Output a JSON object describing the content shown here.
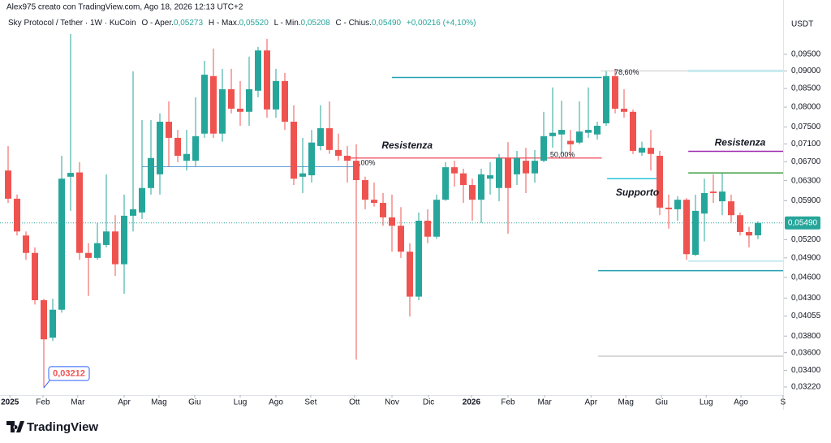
{
  "chart_data": {
    "type": "candlestick",
    "watermark": "Alex975 creato con TradingView.com, Ago 18, 2026 12:13 UTC+2",
    "legend": {
      "symbol": "Sky Protocol / Tether · 1W · KuCoin",
      "items": [
        {
          "label": "O - Aper.",
          "value": "0,05273"
        },
        {
          "label": "H - Max.",
          "value": "0,05520"
        },
        {
          "label": "L - Min.",
          "value": "0,05208"
        },
        {
          "label": "C - Chius.",
          "value": "0,05490"
        }
      ],
      "change": "+0,00216 (+4,10%)"
    },
    "currency": "USDT",
    "up_color": "#26a69a",
    "down_color": "#ef5350",
    "log_scale": true,
    "grid": false,
    "categories": [
      null,
      null,
      null,
      null,
      null,
      null,
      null,
      null,
      null,
      null,
      null,
      null,
      null,
      null,
      null,
      null,
      null,
      null,
      null,
      null,
      null,
      null,
      null,
      null,
      null,
      null,
      null,
      null,
      null,
      null,
      null,
      null,
      null,
      null,
      null,
      null,
      null,
      null,
      null,
      null,
      null,
      null,
      null,
      null,
      null,
      null,
      null,
      null,
      null,
      null,
      null,
      null,
      null,
      null,
      null,
      null,
      null,
      null,
      null,
      null,
      null,
      null,
      null,
      null,
      null,
      null,
      null,
      null,
      null,
      null,
      null,
      null,
      null,
      null,
      null,
      null,
      null,
      null,
      null,
      null,
      null,
      null,
      null,
      null,
      null
    ],
    "candles": [
      {
        "open": 0.0651,
        "high": 0.0705,
        "low": 0.0586,
        "close": 0.0594
      },
      {
        "open": 0.0594,
        "high": 0.0602,
        "low": 0.0527,
        "close": 0.0534
      },
      {
        "open": 0.0527,
        "high": 0.0534,
        "low": 0.0487,
        "close": 0.0498
      },
      {
        "open": 0.0498,
        "high": 0.0507,
        "low": 0.0421,
        "close": 0.0427
      },
      {
        "open": 0.0427,
        "high": 0.0429,
        "low": 0.03212,
        "close": 0.0376
      },
      {
        "open": 0.0378,
        "high": 0.0429,
        "low": 0.0374,
        "close": 0.0414
      },
      {
        "open": 0.0414,
        "high": 0.0683,
        "low": 0.041,
        "close": 0.0634
      },
      {
        "open": 0.0638,
        "high": 0.1015,
        "low": 0.0571,
        "close": 0.0646
      },
      {
        "open": 0.0647,
        "high": 0.0669,
        "low": 0.0487,
        "close": 0.0498
      },
      {
        "open": 0.0498,
        "high": 0.0514,
        "low": 0.0433,
        "close": 0.049
      },
      {
        "open": 0.049,
        "high": 0.0549,
        "low": 0.0487,
        "close": 0.0514
      },
      {
        "open": 0.0511,
        "high": 0.0643,
        "low": 0.0507,
        "close": 0.0534
      },
      {
        "open": 0.0534,
        "high": 0.0563,
        "low": 0.0462,
        "close": 0.048
      },
      {
        "open": 0.048,
        "high": 0.0602,
        "low": 0.0436,
        "close": 0.0562
      },
      {
        "open": 0.0562,
        "high": 0.0899,
        "low": 0.0534,
        "close": 0.0574
      },
      {
        "open": 0.0568,
        "high": 0.0767,
        "low": 0.0556,
        "close": 0.0615
      },
      {
        "open": 0.0615,
        "high": 0.0767,
        "low": 0.0602,
        "close": 0.0678
      },
      {
        "open": 0.0643,
        "high": 0.0784,
        "low": 0.0602,
        "close": 0.0763
      },
      {
        "open": 0.0763,
        "high": 0.0815,
        "low": 0.066,
        "close": 0.0724
      },
      {
        "open": 0.0724,
        "high": 0.0743,
        "low": 0.0669,
        "close": 0.0683
      },
      {
        "open": 0.0672,
        "high": 0.0743,
        "low": 0.0651,
        "close": 0.0687
      },
      {
        "open": 0.0672,
        "high": 0.0826,
        "low": 0.066,
        "close": 0.0728
      },
      {
        "open": 0.0734,
        "high": 0.093,
        "low": 0.0724,
        "close": 0.0889
      },
      {
        "open": 0.0885,
        "high": 0.0968,
        "low": 0.0724,
        "close": 0.0734
      },
      {
        "open": 0.0734,
        "high": 0.0906,
        "low": 0.0715,
        "close": 0.0848
      },
      {
        "open": 0.0848,
        "high": 0.0906,
        "low": 0.0784,
        "close": 0.0796
      },
      {
        "open": 0.0796,
        "high": 0.0871,
        "low": 0.0753,
        "close": 0.0788
      },
      {
        "open": 0.0788,
        "high": 0.0943,
        "low": 0.0753,
        "close": 0.0848
      },
      {
        "open": 0.0844,
        "high": 0.0973,
        "low": 0.0826,
        "close": 0.0962
      },
      {
        "open": 0.0962,
        "high": 0.0999,
        "low": 0.0773,
        "close": 0.0794
      },
      {
        "open": 0.0794,
        "high": 0.0906,
        "low": 0.0773,
        "close": 0.0871
      },
      {
        "open": 0.0871,
        "high": 0.0894,
        "low": 0.0743,
        "close": 0.0763
      },
      {
        "open": 0.0763,
        "high": 0.0805,
        "low": 0.0621,
        "close": 0.0634
      },
      {
        "open": 0.0638,
        "high": 0.0724,
        "low": 0.0605,
        "close": 0.0645
      },
      {
        "open": 0.0641,
        "high": 0.0743,
        "low": 0.0626,
        "close": 0.0713
      },
      {
        "open": 0.0705,
        "high": 0.0805,
        "low": 0.0695,
        "close": 0.0747
      },
      {
        "open": 0.0747,
        "high": 0.0815,
        "low": 0.0687,
        "close": 0.0696
      },
      {
        "open": 0.0696,
        "high": 0.0734,
        "low": 0.0672,
        "close": 0.0683
      },
      {
        "open": 0.0683,
        "high": 0.0705,
        "low": 0.0626,
        "close": 0.0672
      },
      {
        "open": 0.0672,
        "high": 0.0709,
        "low": 0.0352,
        "close": 0.0631
      },
      {
        "open": 0.0631,
        "high": 0.0638,
        "low": 0.0574,
        "close": 0.0592
      },
      {
        "open": 0.0592,
        "high": 0.0626,
        "low": 0.0579,
        "close": 0.0586
      },
      {
        "open": 0.0586,
        "high": 0.0605,
        "low": 0.0544,
        "close": 0.0559
      },
      {
        "open": 0.0559,
        "high": 0.0602,
        "low": 0.05,
        "close": 0.0544
      },
      {
        "open": 0.0544,
        "high": 0.0578,
        "low": 0.049,
        "close": 0.05
      },
      {
        "open": 0.05,
        "high": 0.0514,
        "low": 0.0405,
        "close": 0.0432
      },
      {
        "open": 0.0432,
        "high": 0.0568,
        "low": 0.0427,
        "close": 0.0553
      },
      {
        "open": 0.0553,
        "high": 0.0574,
        "low": 0.0514,
        "close": 0.0525
      },
      {
        "open": 0.0525,
        "high": 0.0602,
        "low": 0.0521,
        "close": 0.0592
      },
      {
        "open": 0.0592,
        "high": 0.0669,
        "low": 0.059,
        "close": 0.0658
      },
      {
        "open": 0.0658,
        "high": 0.0672,
        "low": 0.0618,
        "close": 0.0645
      },
      {
        "open": 0.0645,
        "high": 0.0655,
        "low": 0.0586,
        "close": 0.0621
      },
      {
        "open": 0.0621,
        "high": 0.0634,
        "low": 0.0553,
        "close": 0.0592
      },
      {
        "open": 0.0592,
        "high": 0.0655,
        "low": 0.0549,
        "close": 0.0643
      },
      {
        "open": 0.0634,
        "high": 0.0669,
        "low": 0.0602,
        "close": 0.0641
      },
      {
        "open": 0.0615,
        "high": 0.0687,
        "low": 0.0589,
        "close": 0.0678
      },
      {
        "open": 0.0678,
        "high": 0.0714,
        "low": 0.053,
        "close": 0.0615
      },
      {
        "open": 0.0643,
        "high": 0.0694,
        "low": 0.0621,
        "close": 0.0678
      },
      {
        "open": 0.0672,
        "high": 0.0701,
        "low": 0.0605,
        "close": 0.0645
      },
      {
        "open": 0.0645,
        "high": 0.0696,
        "low": 0.0626,
        "close": 0.0672
      },
      {
        "open": 0.0672,
        "high": 0.0788,
        "low": 0.0669,
        "close": 0.0728
      },
      {
        "open": 0.0728,
        "high": 0.0853,
        "low": 0.0701,
        "close": 0.0736
      },
      {
        "open": 0.0732,
        "high": 0.0817,
        "low": 0.0687,
        "close": 0.0743
      },
      {
        "open": 0.0717,
        "high": 0.0743,
        "low": 0.0678,
        "close": 0.0709
      },
      {
        "open": 0.0713,
        "high": 0.0815,
        "low": 0.0709,
        "close": 0.0739
      },
      {
        "open": 0.0736,
        "high": 0.0853,
        "low": 0.0724,
        "close": 0.0743
      },
      {
        "open": 0.0732,
        "high": 0.0763,
        "low": 0.072,
        "close": 0.0753
      },
      {
        "open": 0.0759,
        "high": 0.0899,
        "low": 0.0753,
        "close": 0.0885
      },
      {
        "open": 0.0885,
        "high": 0.0906,
        "low": 0.0784,
        "close": 0.0796
      },
      {
        "open": 0.0796,
        "high": 0.0848,
        "low": 0.0773,
        "close": 0.0788
      },
      {
        "open": 0.0788,
        "high": 0.0794,
        "low": 0.0687,
        "close": 0.0694
      },
      {
        "open": 0.069,
        "high": 0.0715,
        "low": 0.0683,
        "close": 0.0701
      },
      {
        "open": 0.0701,
        "high": 0.0743,
        "low": 0.0651,
        "close": 0.0687
      },
      {
        "open": 0.0683,
        "high": 0.0694,
        "low": 0.0563,
        "close": 0.0577
      },
      {
        "open": 0.0577,
        "high": 0.0602,
        "low": 0.0539,
        "close": 0.0574
      },
      {
        "open": 0.0574,
        "high": 0.0599,
        "low": 0.0553,
        "close": 0.0592
      },
      {
        "open": 0.0592,
        "high": 0.0595,
        "low": 0.0487,
        "close": 0.0496
      },
      {
        "open": 0.0495,
        "high": 0.0602,
        "low": 0.0493,
        "close": 0.0571
      },
      {
        "open": 0.0566,
        "high": 0.0634,
        "low": 0.0517,
        "close": 0.0605
      },
      {
        "open": 0.0608,
        "high": 0.0643,
        "low": 0.0586,
        "close": 0.0605
      },
      {
        "open": 0.0589,
        "high": 0.0645,
        "low": 0.0563,
        "close": 0.0608
      },
      {
        "open": 0.0589,
        "high": 0.0602,
        "low": 0.0549,
        "close": 0.0563
      },
      {
        "open": 0.0563,
        "high": 0.0568,
        "low": 0.0527,
        "close": 0.0533
      },
      {
        "open": 0.0533,
        "high": 0.0542,
        "low": 0.0507,
        "close": 0.0527
      },
      {
        "open": 0.05273,
        "high": 0.0552,
        "low": 0.05208,
        "close": 0.0549
      }
    ],
    "last_price_label": "0,05490",
    "low_label": "0,03212",
    "xlim": [
      -0.91,
      86.82
    ],
    "xticks": [
      {
        "value": 0.2,
        "label": "2025"
      },
      {
        "value": 3.9,
        "label": "Feb"
      },
      {
        "value": 7.8,
        "label": "Mar"
      },
      {
        "value": 13,
        "label": "Apr"
      },
      {
        "value": 16.9,
        "label": "Mag"
      },
      {
        "value": 20.9,
        "label": "Giu"
      },
      {
        "value": 26,
        "label": "Lug"
      },
      {
        "value": 30,
        "label": "Ago"
      },
      {
        "value": 33.9,
        "label": "Set"
      },
      {
        "value": 38.8,
        "label": "Ott"
      },
      {
        "value": 43,
        "label": "Nov"
      },
      {
        "value": 47.1,
        "label": "Dic"
      },
      {
        "value": 51.9,
        "label": "2026"
      },
      {
        "value": 56,
        "label": "Feb"
      },
      {
        "value": 60.1,
        "label": "Mar"
      },
      {
        "value": 65.3,
        "label": "Apr"
      },
      {
        "value": 69.2,
        "label": "Mag"
      },
      {
        "value": 73.2,
        "label": "Giu"
      },
      {
        "value": 78.2,
        "label": "Lug"
      },
      {
        "value": 82.1,
        "label": "Ago"
      },
      {
        "value": 86.8,
        "label": "S"
      }
    ],
    "ylim": [
      0.03136,
      0.1104
    ],
    "yticks": [
      {
        "value": 0.095,
        "label": "0,09500"
      },
      {
        "value": 0.09,
        "label": "0,09000"
      },
      {
        "value": 0.085,
        "label": "0,08500"
      },
      {
        "value": 0.08,
        "label": "0,08000"
      },
      {
        "value": 0.075,
        "label": "0,07500"
      },
      {
        "value": 0.071,
        "label": "0,07100"
      },
      {
        "value": 0.067,
        "label": "0,06700"
      },
      {
        "value": 0.063,
        "label": "0,06300"
      },
      {
        "value": 0.059,
        "label": "0,05900"
      },
      {
        "value": 0.052,
        "label": "0,05200"
      },
      {
        "value": 0.049,
        "label": "0,04900"
      },
      {
        "value": 0.046,
        "label": "0,04600"
      },
      {
        "value": 0.043,
        "label": "0,04300"
      },
      {
        "value": 0.04055,
        "label": "0,04055"
      },
      {
        "value": 0.038,
        "label": "0,03800"
      },
      {
        "value": 0.036,
        "label": "0,03600"
      },
      {
        "value": 0.034,
        "label": "0,03400"
      },
      {
        "value": 0.0322,
        "label": "0,03220"
      }
    ],
    "drawings": [
      {
        "price": 0.0881,
        "x0": 43,
        "x1": 66.5,
        "color": "#22a2b4",
        "width": 1.5
      },
      {
        "price": 0.0678,
        "x0": 38.2,
        "x1": 66.5,
        "color": "#f06372",
        "width": 1.5
      },
      {
        "price": 0.0659,
        "x0": 15,
        "x1": 39.1,
        "color": "#5b9bd5",
        "width": 1
      },
      {
        "price": 0.09,
        "x0": 66.4,
        "x1": 86.82,
        "color": "#c8c8c8",
        "width": 1
      },
      {
        "price": 0.09,
        "x0": 76.2,
        "x1": 86.82,
        "color": "#c6eaf0",
        "width": 3
      },
      {
        "price": 0.0693,
        "x0": 76.2,
        "x1": 86.82,
        "color": "#9c27b0",
        "width": 1.5
      },
      {
        "price": 0.0646,
        "x0": 76.2,
        "x1": 86.82,
        "color": "#43a047",
        "width": 1.5
      },
      {
        "price": 0.0634,
        "x0": 67.1,
        "x1": 72.7,
        "color": "#26c6da",
        "width": 1.5
      },
      {
        "price": 0.0485,
        "x0": 76.2,
        "x1": 86.82,
        "color": "#c6eaf0",
        "width": 2
      },
      {
        "price": 0.047,
        "x0": 66.1,
        "x1": 86.82,
        "color": "#1e9fb0",
        "width": 1.5
      },
      {
        "price": 0.0356,
        "x0": 66.1,
        "x1": 86.82,
        "color": "#cccccc",
        "width": 1.5
      }
    ],
    "annotations": [
      {
        "text": "Resistenza",
        "x": 44.7,
        "price": 0.0705,
        "color": "#f06372",
        "italic": true
      },
      {
        "text": "Resistenza",
        "x": 82,
        "price": 0.0712,
        "color": "#9c27b0",
        "italic": true
      },
      {
        "text": "Supporto",
        "x": 70.5,
        "price": 0.0605,
        "color": "#26b5c9",
        "italic": true
      },
      {
        "text": "78,60%",
        "x": 69.3,
        "price": 0.0895,
        "color": "#5b9bd5",
        "italic": false
      },
      {
        "text": "50,00%",
        "x": 62.1,
        "price": 0.0685,
        "color": "#f06372",
        "italic": false
      },
      {
        "text": ",00%",
        "x": 40.2,
        "price": 0.0667,
        "color": "#9bb8e8",
        "italic": false
      }
    ]
  },
  "brand": "TradingView"
}
